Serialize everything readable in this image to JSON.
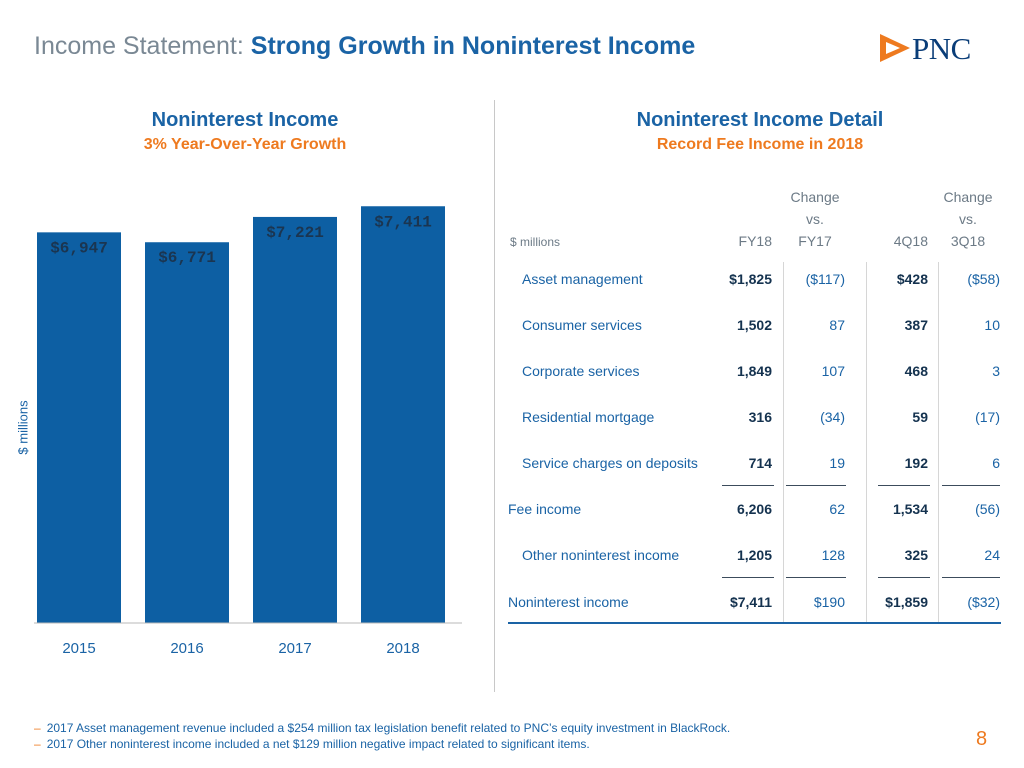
{
  "header": {
    "title_lead": "Income Statement:",
    "title_strong": "Strong Growth in Noninterest Income",
    "logo_text": "PNC"
  },
  "left_panel": {
    "title": "Noninterest Income",
    "subtitle": "3% Year-Over-Year Growth",
    "ylabel": "$ millions"
  },
  "chart_data": {
    "type": "bar",
    "title": "Noninterest Income",
    "subtitle": "3% Year-Over-Year Growth",
    "categories": [
      "2015",
      "2016",
      "2017",
      "2018"
    ],
    "values": [
      6947,
      6771,
      7221,
      7411
    ],
    "value_labels": [
      "$6,947",
      "$6,771",
      "$7,221",
      "$7,411"
    ],
    "xlabel": "",
    "ylabel": "$ millions",
    "ylim": [
      0,
      7700
    ],
    "color": "#0d5fa3"
  },
  "right_panel": {
    "title": "Noninterest Income Detail",
    "subtitle": "Record Fee Income in 2018",
    "units": "$ millions",
    "col_fy18": "FY18",
    "col_fy17_top": "Change",
    "col_fy17_mid": "vs.",
    "col_fy17_bot": "FY17",
    "col_4q18": "4Q18",
    "col_3q18_top": "Change",
    "col_3q18_mid": "vs.",
    "col_3q18_bot": "3Q18",
    "rows": [
      {
        "label": "Asset management",
        "fy18": "$1,825",
        "chg_fy17": "($117)",
        "q4": "$428",
        "chg_3q18": "($58)"
      },
      {
        "label": "Consumer services",
        "fy18": "1,502",
        "chg_fy17": "87",
        "q4": "387",
        "chg_3q18": "10"
      },
      {
        "label": "Corporate services",
        "fy18": "1,849",
        "chg_fy17": "107",
        "q4": "468",
        "chg_3q18": "3"
      },
      {
        "label": "Residential mortgage",
        "fy18": "316",
        "chg_fy17": "(34)",
        "q4": "59",
        "chg_3q18": "(17)"
      },
      {
        "label": "Service charges on deposits",
        "fy18": "714",
        "chg_fy17": "19",
        "q4": "192",
        "chg_3q18": "6"
      },
      {
        "label": "Fee income",
        "fy18": "6,206",
        "chg_fy17": "62",
        "q4": "1,534",
        "chg_3q18": "(56)"
      },
      {
        "label": "Other noninterest income",
        "fy18": "1,205",
        "chg_fy17": "128",
        "q4": "325",
        "chg_3q18": "24"
      },
      {
        "label": "Noninterest income",
        "fy18": "$7,411",
        "chg_fy17": "$190",
        "q4": "$1,859",
        "chg_3q18": "($32)"
      }
    ]
  },
  "footnotes": {
    "dash": "–",
    "note1": "2017 Asset management revenue included a $254 million tax legislation benefit related to PNC’s equity investment in BlackRock.",
    "note2": "2017 Other noninterest income included a net $129 million negative impact related to significant items."
  },
  "page_number": "8",
  "colors": {
    "blue": "#1a63a5",
    "bar": "#0d5fa3",
    "orange": "#ee7a1f",
    "navy": "#14324f"
  }
}
